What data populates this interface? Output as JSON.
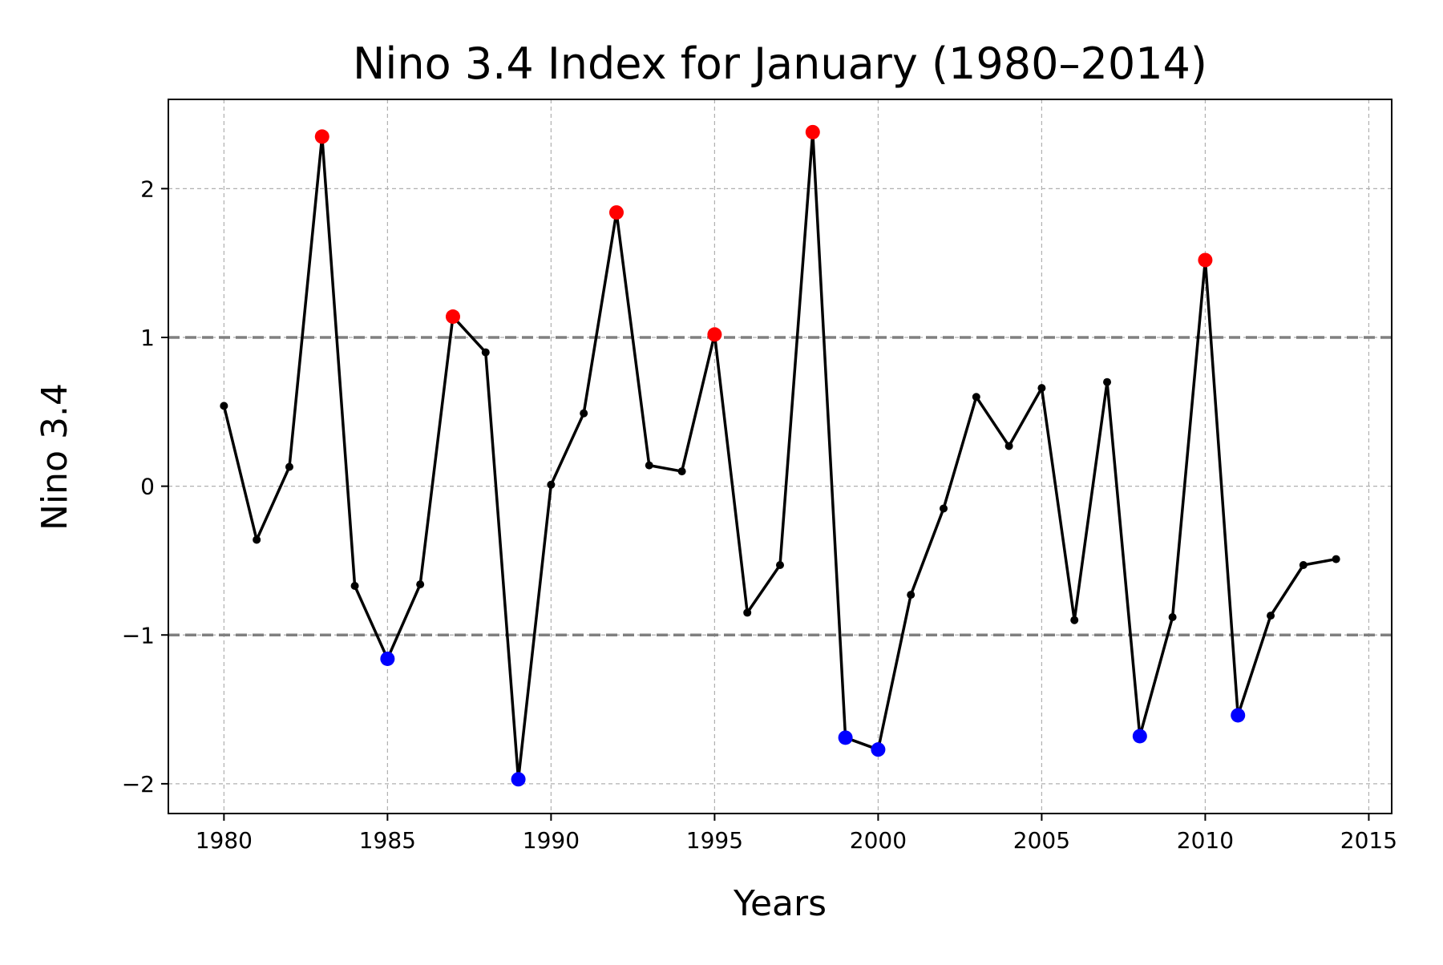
{
  "chart_data": {
    "type": "line",
    "title": "Nino 3.4 Index for January (1980–2014)",
    "xlabel": "Years",
    "ylabel": "Nino 3.4",
    "xlim": [
      1978.3,
      2015.7
    ],
    "ylim": [
      -2.2,
      2.6
    ],
    "xticks": [
      1980,
      1985,
      1990,
      1995,
      2000,
      2005,
      2010,
      2015
    ],
    "xtick_labels": [
      "1980",
      "1985",
      "1990",
      "1995",
      "2000",
      "2005",
      "2010",
      "2015"
    ],
    "yticks": [
      -2,
      -1,
      0,
      1,
      2
    ],
    "ytick_labels": [
      "−2",
      "−1",
      "0",
      "1",
      "2"
    ],
    "grid": true,
    "thresholds": [
      1,
      -1
    ],
    "colors": {
      "line": "#000000",
      "above_threshold": "#ff0000",
      "below_threshold": "#0000ff",
      "threshold_line": "#808080",
      "grid": "#b0b0b0"
    },
    "x": [
      1980,
      1981,
      1982,
      1983,
      1984,
      1985,
      1986,
      1987,
      1988,
      1989,
      1990,
      1991,
      1992,
      1993,
      1994,
      1995,
      1996,
      1997,
      1998,
      1999,
      2000,
      2001,
      2002,
      2003,
      2004,
      2005,
      2006,
      2007,
      2008,
      2009,
      2010,
      2011,
      2012,
      2013,
      2014
    ],
    "series": [
      {
        "values": [
          0.54,
          -0.36,
          0.13,
          2.35,
          -0.67,
          -1.16,
          -0.66,
          1.14,
          0.9,
          -1.97,
          0.01,
          0.49,
          1.84,
          0.14,
          0.1,
          1.02,
          -0.85,
          -0.53,
          2.38,
          -1.69,
          -1.77,
          -0.73,
          -0.15,
          0.6,
          0.27,
          0.66,
          -0.9,
          0.7,
          -1.68,
          -0.88,
          1.52,
          -1.54,
          -0.87,
          -0.53,
          -0.49
        ]
      }
    ]
  }
}
